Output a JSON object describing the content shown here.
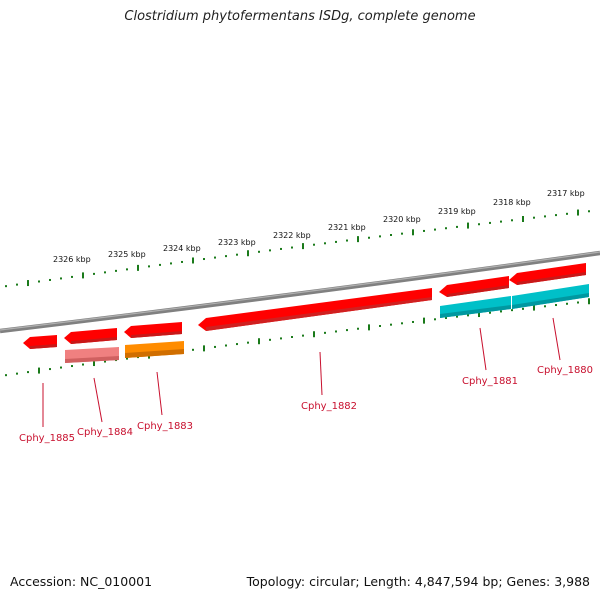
{
  "title": "Clostridium phytofermentans ISDg, complete genome",
  "footer": {
    "accession": "Accession: NC_010001",
    "stats": "Topology: circular; Length: 4,847,594 bp; Genes: 3,988"
  },
  "scale_labels": [
    "2317 kbp",
    "2318 kbp",
    "2319 kbp",
    "2320 kbp",
    "2321 kbp",
    "2322 kbp",
    "2323 kbp",
    "2324 kbp",
    "2325 kbp",
    "2326 kbp"
  ],
  "genes": [
    {
      "name": "Cphy_1880",
      "color": "#00c0c8",
      "strand": "reverse"
    },
    {
      "name": "Cphy_1881",
      "color": "#00c0c8",
      "strand": "reverse"
    },
    {
      "name": "Cphy_1882",
      "color": "#ff0000",
      "strand": "reverse"
    },
    {
      "name": "Cphy_1883",
      "color": "#ff8c00",
      "strand": "reverse"
    },
    {
      "name": "Cphy_1884",
      "color": "#f08080",
      "strand": "reverse"
    },
    {
      "name": "Cphy_1885",
      "color": "#ff0000",
      "strand": "reverse"
    }
  ],
  "colors": {
    "backbone": "#808080",
    "tick": "#1a7a1a",
    "label": "#c8102e",
    "forward_gene": "#ff0000"
  }
}
